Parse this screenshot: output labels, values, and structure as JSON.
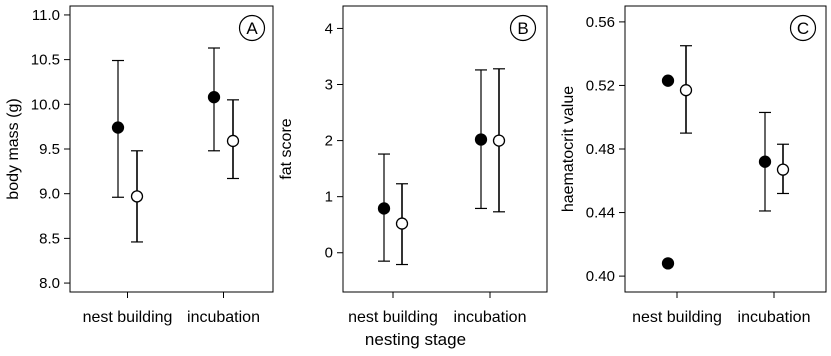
{
  "figure": {
    "shared_xlabel": "nesting stage"
  },
  "chart_data": [
    {
      "type": "scatter",
      "panel_label": "A",
      "title": "",
      "xlabel": "",
      "ylabel": "body mass (g)",
      "categories": [
        "nest building",
        "incubation"
      ],
      "ylim": [
        7.9,
        11.1
      ],
      "yticks": [
        "8.0",
        "8.5",
        "9.0",
        "9.5",
        "10.0",
        "10.5",
        "11.0"
      ],
      "grid": false,
      "series": [
        {
          "marker": "filled",
          "values": [
            9.74,
            10.08
          ],
          "lower": [
            8.96,
            9.48
          ],
          "upper": [
            10.49,
            10.63
          ]
        },
        {
          "marker": "open",
          "values": [
            8.97,
            9.59
          ],
          "lower": [
            8.46,
            9.17
          ],
          "upper": [
            9.48,
            10.05
          ]
        }
      ],
      "extra_points": []
    },
    {
      "type": "scatter",
      "panel_label": "B",
      "title": "",
      "xlabel": "",
      "ylabel": "fat score",
      "categories": [
        "nest building",
        "incubation"
      ],
      "ylim": [
        -0.7,
        4.4
      ],
      "yticks": [
        "0",
        "1",
        "2",
        "3",
        "4"
      ],
      "grid": false,
      "series": [
        {
          "marker": "filled",
          "values": [
            0.79,
            2.02
          ],
          "lower": [
            -0.15,
            0.79
          ],
          "upper": [
            1.76,
            3.26
          ]
        },
        {
          "marker": "open",
          "values": [
            0.52,
            2.0
          ],
          "lower": [
            -0.21,
            0.73
          ],
          "upper": [
            1.23,
            3.28
          ]
        }
      ],
      "extra_points": []
    },
    {
      "type": "scatter",
      "panel_label": "C",
      "title": "",
      "xlabel": "",
      "ylabel": "haematocrit value",
      "categories": [
        "nest building",
        "incubation"
      ],
      "ylim": [
        0.39,
        0.57
      ],
      "yticks": [
        "0.40",
        "0.44",
        "0.48",
        "0.52",
        "0.56"
      ],
      "grid": false,
      "series": [
        {
          "marker": "filled",
          "values": [
            0.523,
            0.472
          ],
          "lower": [
            null,
            0.441
          ],
          "upper": [
            null,
            0.503
          ]
        },
        {
          "marker": "open",
          "values": [
            0.517,
            0.467
          ],
          "lower": [
            0.49,
            0.452
          ],
          "upper": [
            0.545,
            0.483
          ]
        }
      ],
      "extra_points": [
        {
          "marker": "filled",
          "category": "nest building",
          "value": 0.408
        }
      ]
    }
  ]
}
